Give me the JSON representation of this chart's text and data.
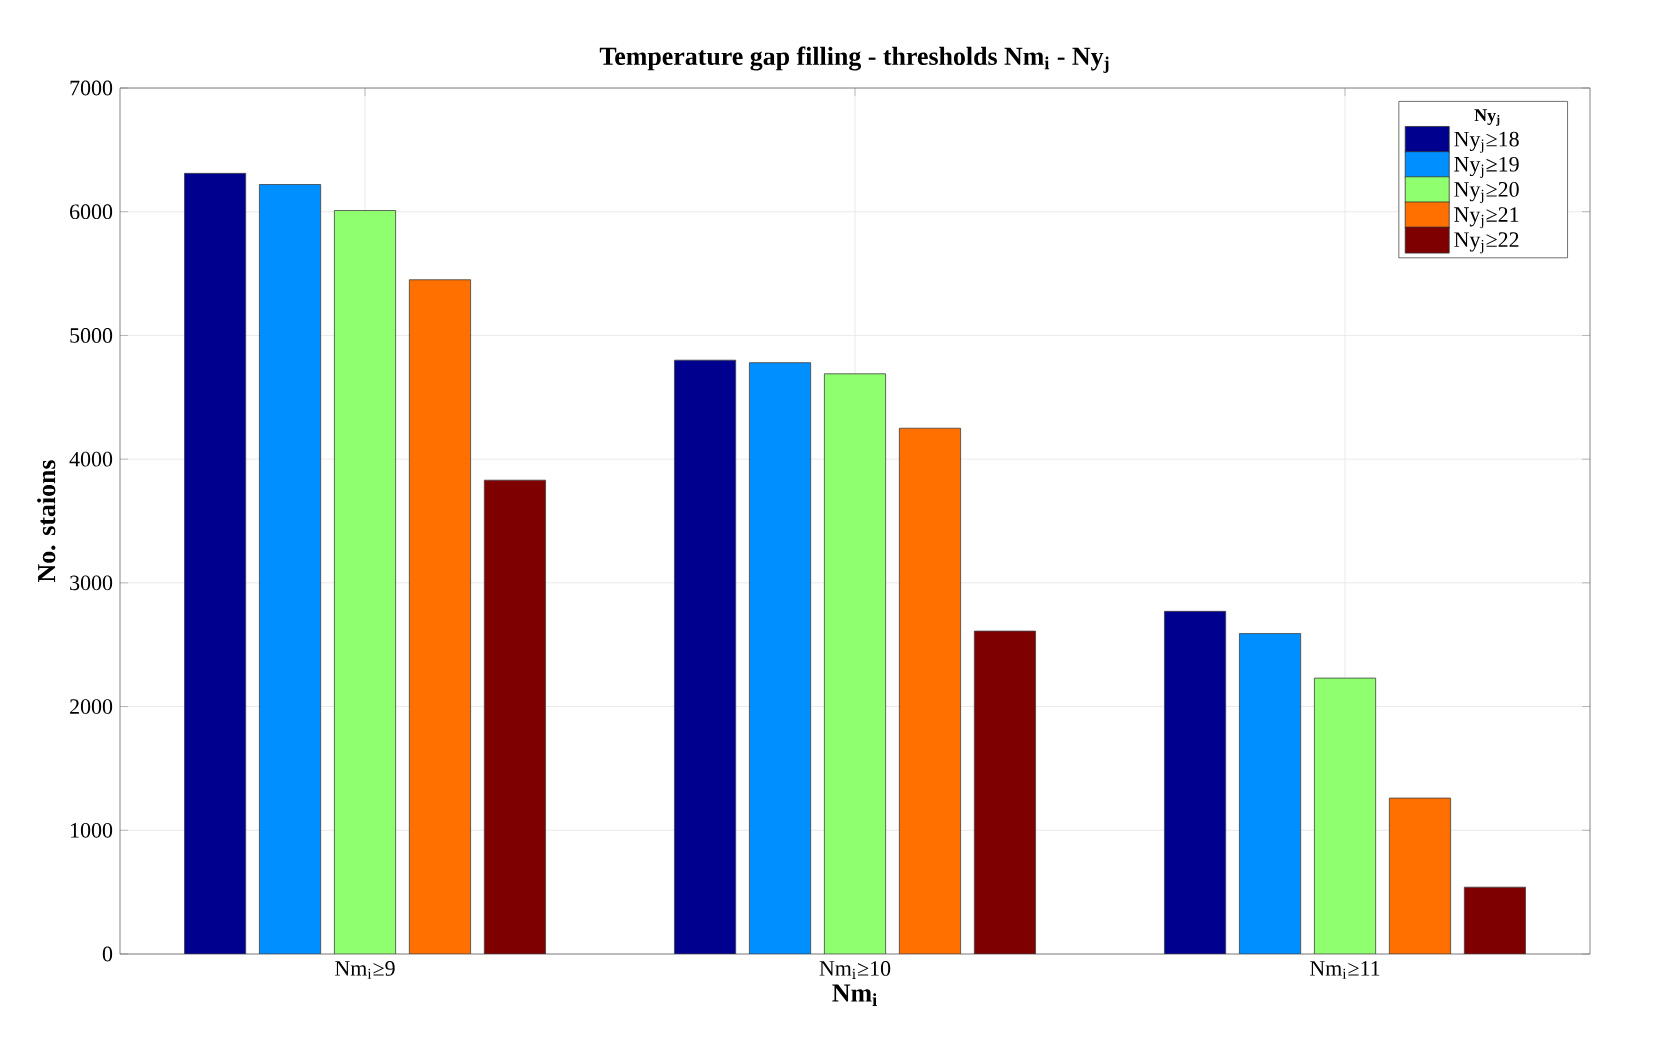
{
  "chart_data": {
    "type": "bar",
    "title": "Temperature gap filling - thresholds Nm$_{i}$ - Ny$_{j}$",
    "xlabel": "Nm$_{i}$",
    "ylabel": "No. staions",
    "legend_title": "Ny$_{j}$",
    "categories": [
      "Nm$_{i}$≥9",
      "Nm$_{i}$≥10",
      "Nm$_{i}$≥11"
    ],
    "series": [
      {
        "name": "Ny$_{j}$≥18",
        "color": "#00008f",
        "values": [
          6310,
          4800,
          2770
        ]
      },
      {
        "name": "Ny$_{j}$≥19",
        "color": "#008fff",
        "values": [
          6220,
          4780,
          2590
        ]
      },
      {
        "name": "Ny$_{j}$≥20",
        "color": "#8fff6f",
        "values": [
          6010,
          4690,
          2230
        ]
      },
      {
        "name": "Ny$_{j}$≥21",
        "color": "#ff7000",
        "values": [
          5450,
          4250,
          1260
        ]
      },
      {
        "name": "Ny$_{j}$≥22",
        "color": "#7f0000",
        "values": [
          3830,
          2610,
          540
        ]
      }
    ],
    "ylim": [
      0,
      7000
    ],
    "yticks": [
      0,
      1000,
      2000,
      3000,
      4000,
      5000,
      6000,
      7000
    ],
    "grid": true,
    "legend": "top right"
  }
}
